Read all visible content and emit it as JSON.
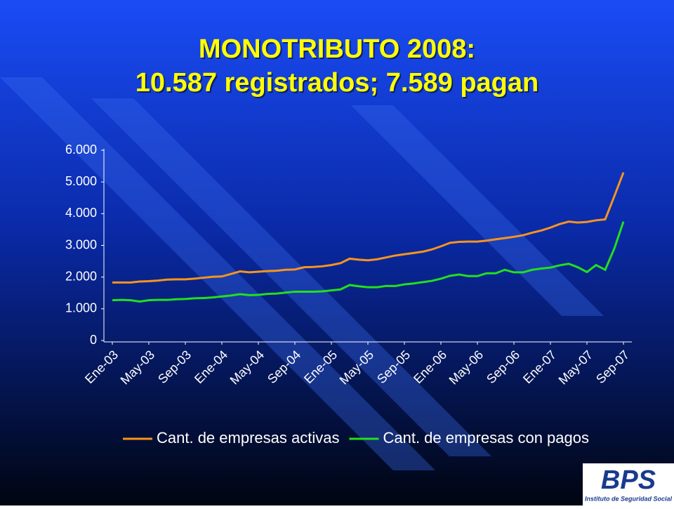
{
  "chart_data": {
    "type": "line",
    "title": [
      "MONOTRIBUTO 2008:",
      "10.587 registrados; 7.589 pagan"
    ],
    "categories": [
      "Ene-03",
      null,
      null,
      null,
      "May-03",
      null,
      null,
      null,
      "Sep-03",
      null,
      null,
      null,
      "Ene-04",
      null,
      null,
      null,
      "May-04",
      null,
      null,
      null,
      "Sep-04",
      null,
      null,
      null,
      "Ene-05",
      null,
      null,
      null,
      "May-05",
      null,
      null,
      null,
      "Sep-05",
      null,
      null,
      null,
      "Ene-06",
      null,
      null,
      null,
      "May-06",
      null,
      null,
      null,
      "Sep-06",
      null,
      null,
      null,
      "Ene-07",
      null,
      null,
      null,
      "May-07",
      null,
      null,
      null,
      "Sep-07"
    ],
    "series": [
      {
        "name": "Cant. de empresas activas",
        "color": "#f7941d",
        "values": [
          1830,
          1830,
          1830,
          1860,
          1870,
          1890,
          1920,
          1930,
          1930,
          1950,
          1980,
          2010,
          2020,
          2100,
          2180,
          2150,
          2170,
          2190,
          2200,
          2230,
          2240,
          2310,
          2320,
          2340,
          2380,
          2440,
          2580,
          2550,
          2530,
          2560,
          2620,
          2680,
          2720,
          2760,
          2800,
          2870,
          2970,
          3080,
          3110,
          3120,
          3120,
          3150,
          3190,
          3230,
          3270,
          3320,
          3400,
          3470,
          3560,
          3670,
          3750,
          3720,
          3740,
          3790,
          3820,
          4550,
          5300
        ]
      },
      {
        "name": "Cant. de empresas con pagos",
        "color": "#22e01c",
        "values": [
          1270,
          1280,
          1270,
          1230,
          1270,
          1280,
          1280,
          1300,
          1310,
          1330,
          1340,
          1360,
          1390,
          1420,
          1460,
          1430,
          1440,
          1470,
          1480,
          1510,
          1540,
          1540,
          1540,
          1550,
          1580,
          1610,
          1750,
          1710,
          1680,
          1680,
          1720,
          1720,
          1770,
          1800,
          1840,
          1880,
          1950,
          2040,
          2080,
          2030,
          2030,
          2120,
          2120,
          2230,
          2150,
          2150,
          2230,
          2270,
          2300,
          2370,
          2420,
          2310,
          2160,
          2380,
          2230,
          2900,
          3750
        ]
      }
    ],
    "ylim": [
      0,
      6000
    ],
    "yticks": [
      0,
      {
        "value": 1000,
        "label": "1.000"
      },
      {
        "value": 2000,
        "label": "2.000"
      },
      {
        "value": 3000,
        "label": "3.000"
      },
      {
        "value": 4000,
        "label": "4.000"
      },
      {
        "value": 5000,
        "label": "5.000"
      },
      {
        "value": 6000,
        "label": "6.000"
      }
    ],
    "legend": "bottom"
  },
  "logo": {
    "name": "BPS",
    "subtitle": "Instituto de Seguridad Social"
  }
}
